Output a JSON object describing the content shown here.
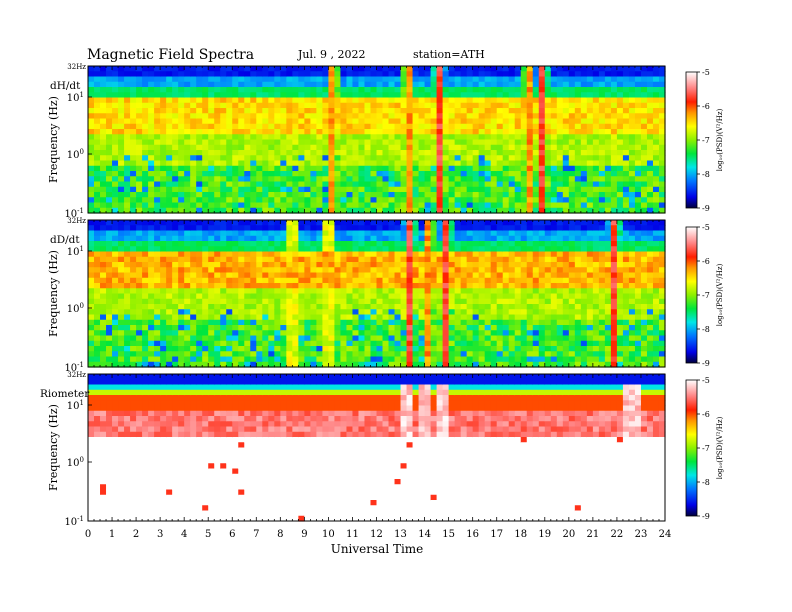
{
  "header": {
    "title": "Magnetic  Field  Spectra",
    "date": "Jul.  9  , 2022",
    "station": "station=ATH"
  },
  "colors": {
    "scale": [
      "#00003c",
      "#0000e6",
      "#0078ff",
      "#00e6e6",
      "#00e63c",
      "#8cf000",
      "#ffff00",
      "#ff9600",
      "#ff1e00",
      "#ff8282",
      "#ffffff"
    ],
    "panel_colorbar_mid": "#c80000"
  },
  "chart_data": [
    {
      "type": "heatmap",
      "panel_label": "dH/dt",
      "ylabel": "Frequency  (Hz)",
      "top_label": "32Hz",
      "y_ticks": [
        {
          "base": "10",
          "exp": "1"
        },
        {
          "base": "10",
          "exp": "0"
        },
        {
          "base": "10",
          "exp": "-1"
        }
      ],
      "colorbar": {
        "ticks": [
          "-5",
          "-6",
          "-7",
          "-8",
          "-9"
        ],
        "label": "log₁₀(PSD)(V²/Hz)"
      },
      "background_level": 0.45,
      "band_level": 0.62,
      "bursts": [
        10.2,
        13.3,
        14.6,
        18.3,
        18.9
      ]
    },
    {
      "type": "heatmap",
      "panel_label": "dD/dt",
      "ylabel": "Frequency  (Hz)",
      "top_label": "32Hz",
      "y_ticks": [
        {
          "base": "10",
          "exp": "1"
        },
        {
          "base": "10",
          "exp": "0"
        },
        {
          "base": "10",
          "exp": "-1"
        }
      ],
      "colorbar": {
        "ticks": [
          "-5",
          "-6",
          "-7",
          "-8",
          "-9"
        ],
        "label": "log₁₀(PSD)(V²/Hz)"
      },
      "background_level": 0.45,
      "band_level": 0.66,
      "bursts": [
        8.5,
        10.0,
        13.4,
        14.2,
        14.9,
        21.9
      ]
    },
    {
      "type": "heatmap",
      "panel_label": "Riometer",
      "ylabel": "Frequency  (Hz)",
      "top_label": "32Hz",
      "y_ticks": [
        {
          "base": "10",
          "exp": "1"
        },
        {
          "base": "10",
          "exp": "0"
        },
        {
          "base": "10",
          "exp": "-1"
        }
      ],
      "colorbar": {
        "ticks": [
          "-5",
          "-6",
          "-7",
          "-8",
          "-9"
        ],
        "label": "log₁₀(PSD)(V²/Hz)"
      },
      "background_level": 1.0,
      "band_level": 0.9,
      "bursts": [
        13.3,
        14.0,
        14.8,
        22.6
      ]
    }
  ],
  "x_axis": {
    "label": "Universal  Time",
    "ticks": [
      "0",
      "1",
      "2",
      "3",
      "4",
      "5",
      "6",
      "7",
      "8",
      "9",
      "10",
      "11",
      "12",
      "13",
      "14",
      "15",
      "16",
      "17",
      "18",
      "19",
      "20",
      "21",
      "22",
      "23",
      "24"
    ],
    "range": [
      0,
      24
    ]
  }
}
